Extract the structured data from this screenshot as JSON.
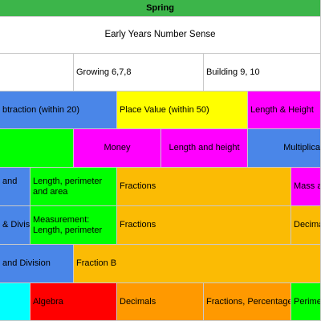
{
  "colors": {
    "header_green": "#3cb54a",
    "blue": "#4a86e8",
    "yellow": "#ffff00",
    "magenta": "#ff00ff",
    "green": "#00ff00",
    "orange": "#fbbb04",
    "dark_orange": "#ff9900",
    "red": "#ff0000",
    "cyan": "#00ffff"
  },
  "header": {
    "term": "Spring"
  },
  "rows": {
    "r1": {
      "title": "Early Years Number Sense"
    },
    "r2": {
      "c1": "",
      "c2": "Growing 6,7,8",
      "c3": "Building 9, 10"
    },
    "r3": {
      "c1": "btraction (within 20)",
      "c2": "Place Value (within 50)",
      "c3": "Length & Height"
    },
    "r4": {
      "c1": "",
      "c2": "Money",
      "c3": "Length and height",
      "c4": "Multiplica"
    },
    "r5": {
      "c1": "and",
      "c2": "Length, perimeter and area",
      "c3": "Fractions",
      "c4": "Mass a"
    },
    "r6": {
      "c1": "& Divisi",
      "c2": "Measurement: Length, perimeter",
      "c3": "Fractions",
      "c4": "Decima"
    },
    "r7": {
      "c1": "and Division",
      "c2": "Fraction B"
    },
    "r8": {
      "c1": "",
      "c2": "Algebra",
      "c3": "Decimals",
      "c4": "Fractions, Percentage",
      "c5": "Perime"
    }
  }
}
